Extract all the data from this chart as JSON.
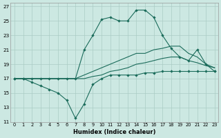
{
  "xlabel": "Humidex (Indice chaleur)",
  "bg_color": "#cce8e2",
  "grid_color": "#aaccC4",
  "line_color": "#1a6b5a",
  "xlim": [
    -0.5,
    23.4
  ],
  "ylim": [
    11,
    27.5
  ],
  "yticks": [
    11,
    13,
    15,
    17,
    19,
    21,
    23,
    25,
    27
  ],
  "xticks": [
    0,
    1,
    2,
    3,
    4,
    5,
    6,
    7,
    8,
    9,
    10,
    11,
    12,
    13,
    14,
    15,
    16,
    17,
    18,
    19,
    20,
    21,
    22,
    23
  ],
  "line_top_x": [
    0,
    1,
    2,
    3,
    4,
    5,
    6,
    7,
    8,
    9,
    10,
    11,
    12,
    13,
    14,
    15,
    16,
    17,
    18,
    19,
    20,
    21,
    22,
    23
  ],
  "line_top_y": [
    17,
    17,
    17,
    17,
    17,
    17,
    17,
    17,
    21,
    23,
    25.2,
    25.5,
    25,
    25,
    26.5,
    26.5,
    25.5,
    23,
    21.2,
    20,
    19.5,
    21,
    19,
    18
  ],
  "line_hi_x": [
    0,
    1,
    2,
    3,
    4,
    5,
    6,
    7,
    8,
    9,
    10,
    11,
    12,
    13,
    14,
    15,
    16,
    17,
    18,
    19,
    20,
    21,
    22,
    23
  ],
  "line_hi_y": [
    17,
    17,
    17,
    17,
    17,
    17,
    17,
    17,
    17.5,
    18,
    18.5,
    19,
    19.5,
    20,
    20.5,
    20.5,
    21,
    21.2,
    21.5,
    21.5,
    20.5,
    20,
    19,
    18.5
  ],
  "line_lo_x": [
    0,
    1,
    2,
    3,
    4,
    5,
    6,
    7,
    8,
    9,
    10,
    11,
    12,
    13,
    14,
    15,
    16,
    17,
    18,
    19,
    20,
    21,
    22,
    23
  ],
  "line_lo_y": [
    17,
    17,
    17,
    17,
    17,
    17,
    17,
    17,
    17,
    17.3,
    17.5,
    18,
    18.2,
    18.5,
    19,
    19.2,
    19.5,
    19.8,
    20,
    20,
    19.5,
    19.2,
    18.8,
    18.5
  ],
  "line_bot_x": [
    0,
    1,
    2,
    3,
    4,
    5,
    6,
    7,
    8,
    9,
    10,
    11,
    12,
    13,
    14,
    15,
    16,
    17,
    18,
    19,
    20,
    21,
    22,
    23
  ],
  "line_bot_y": [
    17,
    17,
    16.5,
    16,
    15.5,
    15,
    14,
    11.5,
    13.5,
    16.2,
    17,
    17.5,
    17.5,
    17.5,
    17.5,
    17.8,
    17.8,
    18,
    18,
    18,
    18,
    18,
    18,
    18
  ]
}
